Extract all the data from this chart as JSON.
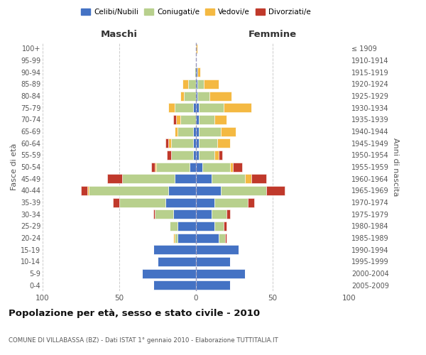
{
  "age_groups": [
    "0-4",
    "5-9",
    "10-14",
    "15-19",
    "20-24",
    "25-29",
    "30-34",
    "35-39",
    "40-44",
    "45-49",
    "50-54",
    "55-59",
    "60-64",
    "65-69",
    "70-74",
    "75-79",
    "80-84",
    "85-89",
    "90-94",
    "95-99",
    "100+"
  ],
  "birth_years": [
    "2005-2009",
    "2000-2004",
    "1995-1999",
    "1990-1994",
    "1985-1989",
    "1980-1984",
    "1975-1979",
    "1970-1974",
    "1965-1969",
    "1960-1964",
    "1955-1959",
    "1950-1954",
    "1945-1949",
    "1940-1944",
    "1935-1939",
    "1930-1934",
    "1925-1929",
    "1920-1924",
    "1915-1919",
    "1910-1914",
    "≤ 1909"
  ],
  "male": {
    "celibe": [
      28,
      35,
      25,
      28,
      12,
      12,
      15,
      20,
      18,
      14,
      4,
      2,
      2,
      2,
      0,
      2,
      0,
      0,
      0,
      0,
      0
    ],
    "coniugato": [
      0,
      0,
      0,
      0,
      2,
      5,
      12,
      30,
      52,
      34,
      22,
      14,
      14,
      10,
      10,
      12,
      8,
      5,
      1,
      0,
      0
    ],
    "vedovo": [
      0,
      0,
      0,
      0,
      1,
      0,
      0,
      0,
      1,
      0,
      1,
      0,
      2,
      2,
      3,
      4,
      2,
      4,
      0,
      0,
      0
    ],
    "divorziato": [
      0,
      0,
      0,
      0,
      0,
      0,
      1,
      4,
      4,
      10,
      2,
      3,
      2,
      0,
      2,
      0,
      0,
      0,
      0,
      0,
      0
    ]
  },
  "female": {
    "nubile": [
      22,
      32,
      22,
      28,
      15,
      12,
      10,
      12,
      16,
      10,
      4,
      2,
      2,
      2,
      2,
      2,
      1,
      1,
      1,
      0,
      0
    ],
    "coniugata": [
      0,
      0,
      0,
      0,
      4,
      6,
      10,
      22,
      30,
      22,
      18,
      10,
      12,
      14,
      10,
      16,
      8,
      4,
      0,
      0,
      0
    ],
    "vedova": [
      0,
      0,
      0,
      0,
      0,
      0,
      0,
      0,
      0,
      4,
      2,
      3,
      8,
      10,
      8,
      18,
      14,
      10,
      2,
      0,
      1
    ],
    "divorziata": [
      0,
      0,
      0,
      0,
      1,
      2,
      2,
      4,
      12,
      10,
      6,
      2,
      0,
      0,
      0,
      0,
      0,
      0,
      0,
      0,
      0
    ]
  },
  "colors": {
    "celibe": "#4472c4",
    "coniugato": "#b8d08d",
    "vedovo": "#f4b942",
    "divorziato": "#c0392b"
  },
  "xlim": 100,
  "title": "Popolazione per età, sesso e stato civile - 2010",
  "subtitle": "COMUNE DI VILLABASSA (BZ) - Dati ISTAT 1° gennaio 2010 - Elaborazione TUTTITALIA.IT",
  "ylabel_left": "Fasce di età",
  "ylabel_right": "Anni di nascita",
  "xlabel_left": "Maschi",
  "xlabel_right": "Femmine",
  "legend_labels": [
    "Celibi/Nubili",
    "Coniugati/e",
    "Vedovi/e",
    "Divorziati/e"
  ],
  "bg_color": "#ffffff",
  "grid_color": "#cccccc"
}
